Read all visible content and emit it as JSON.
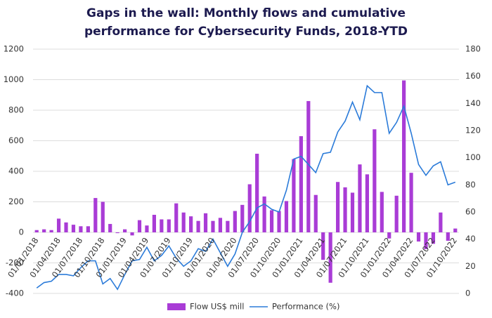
{
  "chart_data": {
    "type": "bar-line",
    "title": [
      "Gaps in the wall: Monthly flows and cumulative",
      "performance for Cybersecurity Funds, 2018-YTD"
    ],
    "categories": [
      "01/01/2018",
      null,
      null,
      "01/04/2018",
      null,
      null,
      "01/07/2018",
      null,
      null,
      "01/10/2018",
      null,
      null,
      "01/01/2019",
      null,
      null,
      "01/04/2019",
      null,
      null,
      "01/07/2019",
      null,
      null,
      "01/10/2019",
      null,
      null,
      "01/01/2020",
      null,
      null,
      "01/04/2020",
      null,
      null,
      "01/07/2020",
      null,
      null,
      "01/10/2020",
      null,
      null,
      "01/01/2021",
      null,
      null,
      "01/04/2021",
      null,
      null,
      "01/07/2021",
      null,
      null,
      "01/10/2021",
      null,
      null,
      "01/01/2022",
      null,
      null,
      "01/04/2022",
      null,
      null,
      "01/07/2022",
      null,
      null,
      "01/10/2022"
    ],
    "series": [
      {
        "name": "Flow US$ mill",
        "type": "bar",
        "color": "#a93cd6",
        "values": [
          15,
          20,
          15,
          90,
          65,
          50,
          40,
          40,
          225,
          200,
          55,
          -5,
          20,
          -20,
          80,
          45,
          115,
          85,
          85,
          190,
          130,
          105,
          75,
          125,
          75,
          95,
          75,
          140,
          180,
          315,
          515,
          235,
          145,
          140,
          205,
          480,
          630,
          860,
          245,
          -180,
          -330,
          330,
          295,
          260,
          445,
          380,
          675,
          265,
          -40,
          240,
          995,
          390,
          -60,
          -110,
          -75,
          130,
          -55,
          25
        ]
      },
      {
        "name": "Performance (%)",
        "type": "line",
        "axis": "y2",
        "color": "#2b7bd9",
        "values": [
          4,
          8,
          9,
          14,
          14,
          13,
          19,
          24,
          24,
          7,
          11,
          3,
          14,
          24,
          25,
          34,
          24,
          28,
          35,
          26,
          20,
          24,
          33,
          31,
          40,
          30,
          20,
          29,
          45,
          53,
          63,
          66,
          62,
          60,
          76,
          99,
          101,
          95,
          89,
          103,
          104,
          119,
          127,
          141,
          128,
          153,
          148,
          148,
          118,
          126,
          138,
          118,
          95,
          87,
          94,
          97,
          80,
          82
        ]
      }
    ],
    "ylim": [
      -400,
      1200
    ],
    "yticks": [
      -400,
      -200,
      0,
      200,
      400,
      600,
      800,
      1000,
      1200
    ],
    "y2lim": [
      0,
      180
    ],
    "y2ticks": [
      0,
      20,
      40,
      60,
      80,
      100,
      120,
      140,
      160,
      180
    ],
    "grid": true,
    "legend": "bottom"
  }
}
